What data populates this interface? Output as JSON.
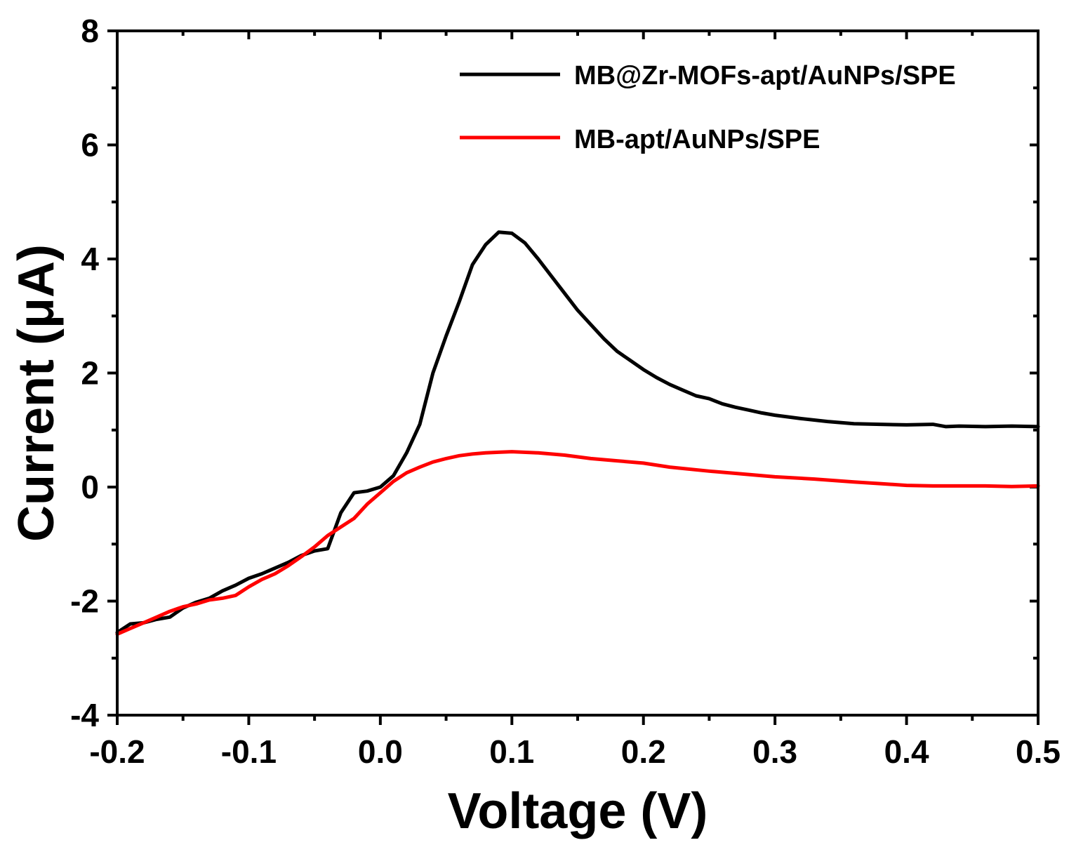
{
  "chart_data": {
    "type": "line",
    "title": "",
    "xlabel": "Voltage (V)",
    "ylabel": "Current (μA)",
    "xlim": [
      -0.2,
      0.5
    ],
    "ylim": [
      -4,
      8
    ],
    "x_ticks": [
      -0.2,
      -0.1,
      0.0,
      0.1,
      0.2,
      0.3,
      0.4,
      0.5
    ],
    "x_tick_labels": [
      "-0.2",
      "-0.1",
      "0.0",
      "0.1",
      "0.2",
      "0.3",
      "0.4",
      "0.5"
    ],
    "y_ticks": [
      -4,
      -2,
      0,
      2,
      4,
      6,
      8
    ],
    "y_tick_labels": [
      "-4",
      "-2",
      "0",
      "2",
      "4",
      "6",
      "8"
    ],
    "grid": false,
    "legend_position": "top-right",
    "series": [
      {
        "name": "MB@Zr-MOFs-apt/AuNPs/SPE",
        "color": "#000000",
        "x": [
          -0.2,
          -0.19,
          -0.18,
          -0.17,
          -0.16,
          -0.15,
          -0.14,
          -0.13,
          -0.12,
          -0.11,
          -0.1,
          -0.09,
          -0.08,
          -0.07,
          -0.06,
          -0.05,
          -0.04,
          -0.03,
          -0.02,
          -0.01,
          0.0,
          0.01,
          0.02,
          0.03,
          0.04,
          0.05,
          0.06,
          0.07,
          0.08,
          0.09,
          0.1,
          0.11,
          0.12,
          0.13,
          0.14,
          0.15,
          0.16,
          0.17,
          0.18,
          0.19,
          0.2,
          0.21,
          0.22,
          0.23,
          0.24,
          0.25,
          0.26,
          0.27,
          0.28,
          0.29,
          0.3,
          0.32,
          0.34,
          0.36,
          0.38,
          0.4,
          0.42,
          0.43,
          0.44,
          0.46,
          0.48,
          0.5
        ],
        "values": [
          -2.55,
          -2.4,
          -2.38,
          -2.32,
          -2.28,
          -2.12,
          -2.02,
          -1.95,
          -1.82,
          -1.72,
          -1.6,
          -1.52,
          -1.42,
          -1.32,
          -1.2,
          -1.12,
          -1.08,
          -0.45,
          -0.1,
          -0.07,
          0.0,
          0.2,
          0.6,
          1.1,
          2.0,
          2.65,
          3.25,
          3.9,
          4.25,
          4.47,
          4.45,
          4.28,
          4.0,
          3.7,
          3.4,
          3.1,
          2.85,
          2.6,
          2.38,
          2.22,
          2.06,
          1.92,
          1.8,
          1.7,
          1.6,
          1.55,
          1.46,
          1.4,
          1.35,
          1.3,
          1.26,
          1.2,
          1.15,
          1.11,
          1.1,
          1.09,
          1.1,
          1.06,
          1.07,
          1.06,
          1.07,
          1.06
        ]
      },
      {
        "name": "MB-apt/AuNPs/SPE",
        "color": "#ff0000",
        "x": [
          -0.2,
          -0.19,
          -0.18,
          -0.17,
          -0.16,
          -0.15,
          -0.14,
          -0.13,
          -0.12,
          -0.11,
          -0.1,
          -0.09,
          -0.08,
          -0.07,
          -0.06,
          -0.05,
          -0.04,
          -0.03,
          -0.02,
          -0.01,
          0.0,
          0.01,
          0.02,
          0.03,
          0.04,
          0.05,
          0.06,
          0.07,
          0.08,
          0.09,
          0.1,
          0.12,
          0.14,
          0.16,
          0.18,
          0.2,
          0.22,
          0.25,
          0.28,
          0.3,
          0.33,
          0.36,
          0.38,
          0.4,
          0.42,
          0.44,
          0.46,
          0.48,
          0.5
        ],
        "values": [
          -2.58,
          -2.48,
          -2.38,
          -2.28,
          -2.18,
          -2.1,
          -2.05,
          -1.98,
          -1.95,
          -1.9,
          -1.75,
          -1.62,
          -1.52,
          -1.38,
          -1.22,
          -1.05,
          -0.85,
          -0.7,
          -0.55,
          -0.3,
          -0.1,
          0.1,
          0.25,
          0.35,
          0.44,
          0.5,
          0.55,
          0.58,
          0.6,
          0.61,
          0.62,
          0.6,
          0.56,
          0.5,
          0.46,
          0.42,
          0.35,
          0.28,
          0.22,
          0.18,
          0.14,
          0.09,
          0.06,
          0.03,
          0.02,
          0.02,
          0.02,
          0.01,
          0.02
        ]
      }
    ]
  }
}
